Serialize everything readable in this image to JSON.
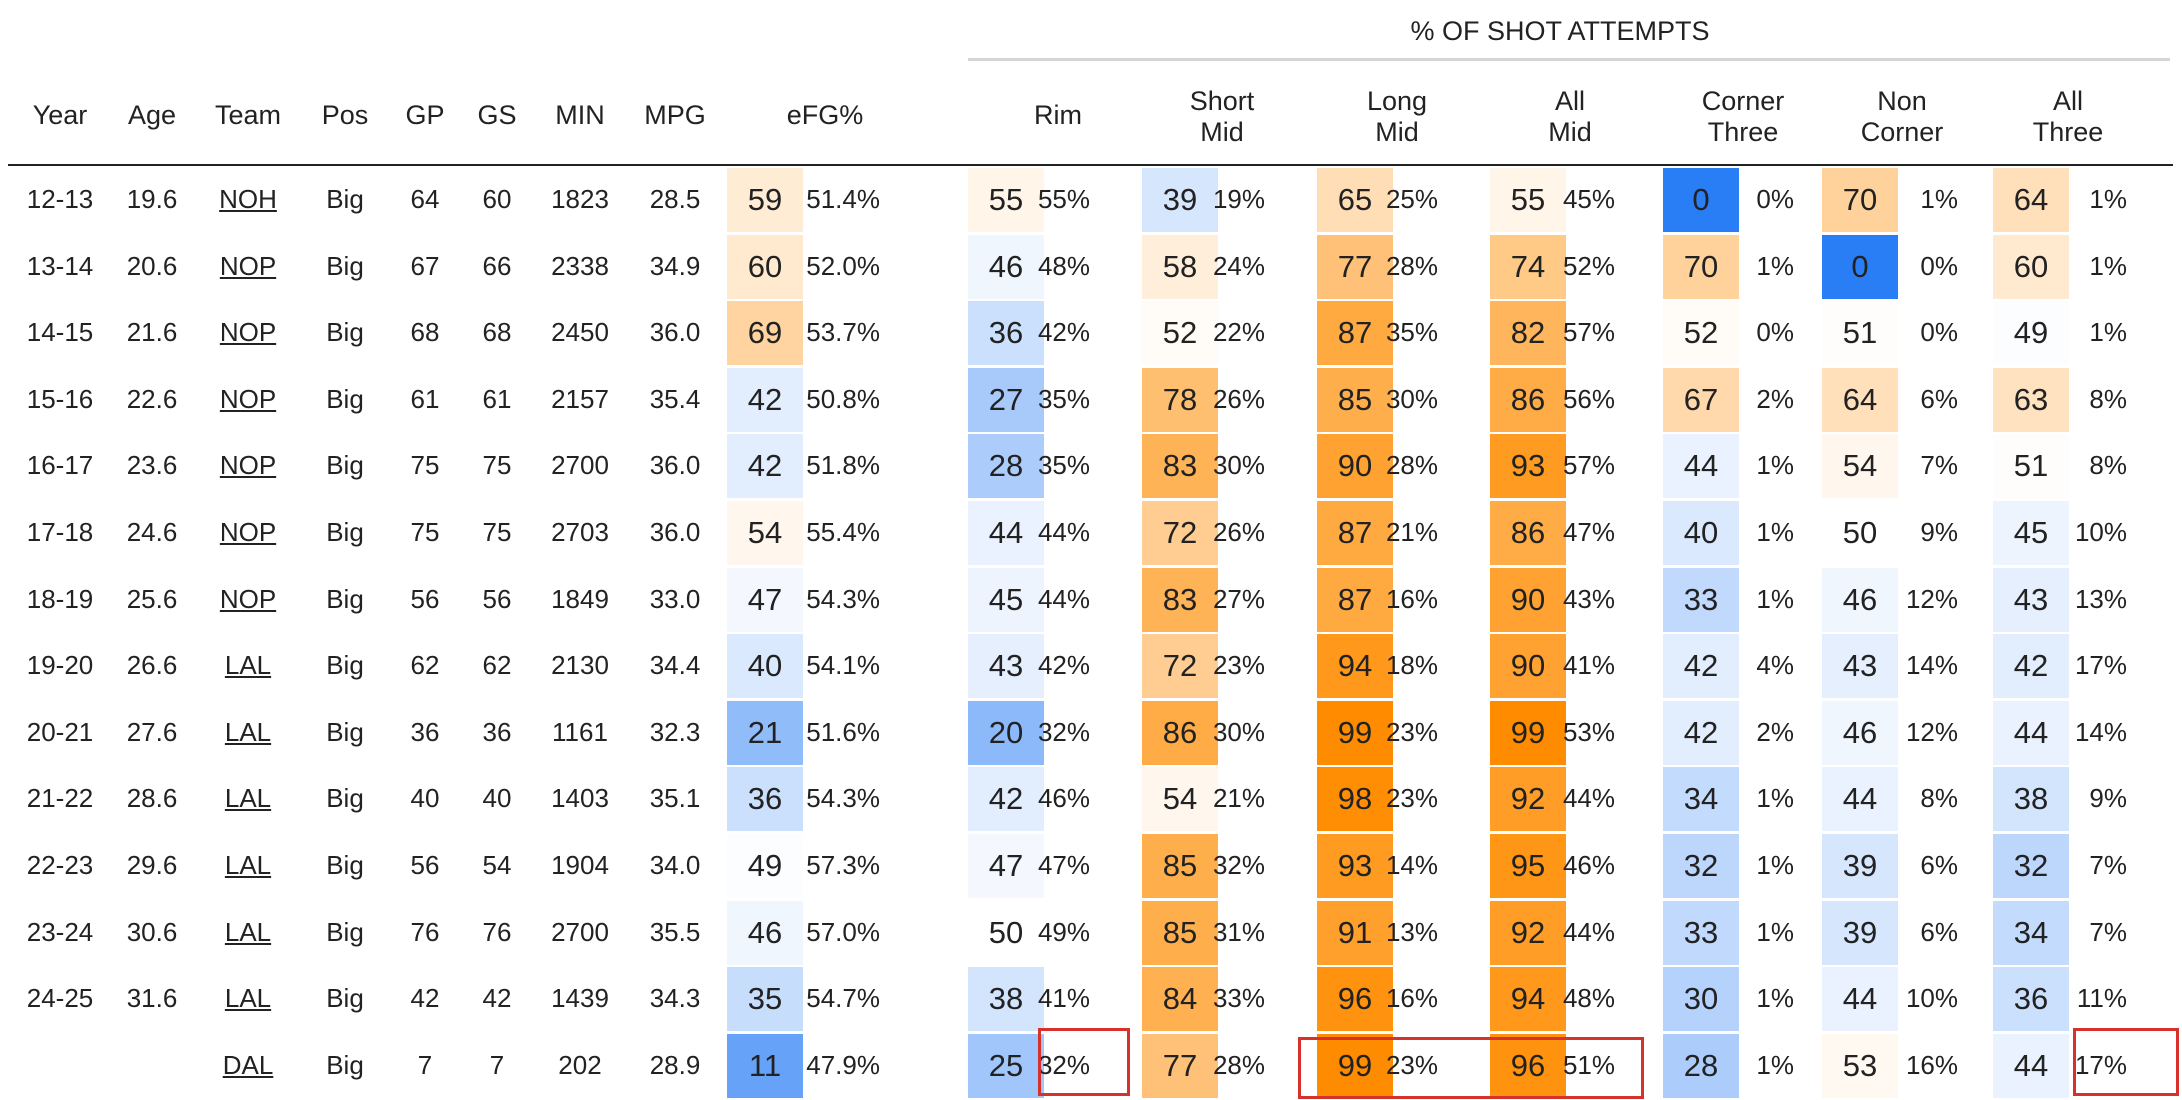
{
  "title": "% OF SHOT ATTEMPTS",
  "headers": {
    "year": "Year",
    "age": "Age",
    "team": "Team",
    "pos": "Pos",
    "gp": "GP",
    "gs": "GS",
    "min": "MIN",
    "mpg": "MPG",
    "efg": "eFG%",
    "rim": "Rim",
    "short_mid": [
      "Short",
      "Mid"
    ],
    "long_mid": [
      "Long",
      "Mid"
    ],
    "all_mid": [
      "All",
      "Mid"
    ],
    "corner_three": [
      "Corner",
      "Three"
    ],
    "non_corner": [
      "Non",
      "Corner"
    ],
    "all_three": [
      "All",
      "Three"
    ]
  },
  "rows": [
    {
      "year": "12-13",
      "age": "19.6",
      "team": "NOH",
      "pos": "Big",
      "gp": "64",
      "gs": "60",
      "min": "1823",
      "mpg": "28.5",
      "efg_pctile": 59,
      "efg": "51.4%",
      "rim_pctile": 55,
      "rim": "55%",
      "smid_pctile": 39,
      "smid": "19%",
      "lmid_pctile": 65,
      "lmid": "25%",
      "amid_pctile": 55,
      "amid": "45%",
      "c3_pctile": 0,
      "c3": "0%",
      "nc3_pctile": 70,
      "nc3": "1%",
      "a3_pctile": 64,
      "a3": "1%"
    },
    {
      "year": "13-14",
      "age": "20.6",
      "team": "NOP",
      "pos": "Big",
      "gp": "67",
      "gs": "66",
      "min": "2338",
      "mpg": "34.9",
      "efg_pctile": 60,
      "efg": "52.0%",
      "rim_pctile": 46,
      "rim": "48%",
      "smid_pctile": 58,
      "smid": "24%",
      "lmid_pctile": 77,
      "lmid": "28%",
      "amid_pctile": 74,
      "amid": "52%",
      "c3_pctile": 70,
      "c3": "1%",
      "nc3_pctile": 0,
      "nc3": "0%",
      "a3_pctile": 60,
      "a3": "1%"
    },
    {
      "year": "14-15",
      "age": "21.6",
      "team": "NOP",
      "pos": "Big",
      "gp": "68",
      "gs": "68",
      "min": "2450",
      "mpg": "36.0",
      "efg_pctile": 69,
      "efg": "53.7%",
      "rim_pctile": 36,
      "rim": "42%",
      "smid_pctile": 52,
      "smid": "22%",
      "lmid_pctile": 87,
      "lmid": "35%",
      "amid_pctile": 82,
      "amid": "57%",
      "c3_pctile": 52,
      "c3": "0%",
      "nc3_pctile": 51,
      "nc3": "0%",
      "a3_pctile": 49,
      "a3": "1%"
    },
    {
      "year": "15-16",
      "age": "22.6",
      "team": "NOP",
      "pos": "Big",
      "gp": "61",
      "gs": "61",
      "min": "2157",
      "mpg": "35.4",
      "efg_pctile": 42,
      "efg": "50.8%",
      "rim_pctile": 27,
      "rim": "35%",
      "smid_pctile": 78,
      "smid": "26%",
      "lmid_pctile": 85,
      "lmid": "30%",
      "amid_pctile": 86,
      "amid": "56%",
      "c3_pctile": 67,
      "c3": "2%",
      "nc3_pctile": 64,
      "nc3": "6%",
      "a3_pctile": 63,
      "a3": "8%"
    },
    {
      "year": "16-17",
      "age": "23.6",
      "team": "NOP",
      "pos": "Big",
      "gp": "75",
      "gs": "75",
      "min": "2700",
      "mpg": "36.0",
      "efg_pctile": 42,
      "efg": "51.8%",
      "rim_pctile": 28,
      "rim": "35%",
      "smid_pctile": 83,
      "smid": "30%",
      "lmid_pctile": 90,
      "lmid": "28%",
      "amid_pctile": 93,
      "amid": "57%",
      "c3_pctile": 44,
      "c3": "1%",
      "nc3_pctile": 54,
      "nc3": "7%",
      "a3_pctile": 51,
      "a3": "8%"
    },
    {
      "year": "17-18",
      "age": "24.6",
      "team": "NOP",
      "pos": "Big",
      "gp": "75",
      "gs": "75",
      "min": "2703",
      "mpg": "36.0",
      "efg_pctile": 54,
      "efg": "55.4%",
      "rim_pctile": 44,
      "rim": "44%",
      "smid_pctile": 72,
      "smid": "26%",
      "lmid_pctile": 87,
      "lmid": "21%",
      "amid_pctile": 86,
      "amid": "47%",
      "c3_pctile": 40,
      "c3": "1%",
      "nc3_pctile": 50,
      "nc3": "9%",
      "a3_pctile": 45,
      "a3": "10%"
    },
    {
      "year": "18-19",
      "age": "25.6",
      "team": "NOP",
      "pos": "Big",
      "gp": "56",
      "gs": "56",
      "min": "1849",
      "mpg": "33.0",
      "efg_pctile": 47,
      "efg": "54.3%",
      "rim_pctile": 45,
      "rim": "44%",
      "smid_pctile": 83,
      "smid": "27%",
      "lmid_pctile": 87,
      "lmid": "16%",
      "amid_pctile": 90,
      "amid": "43%",
      "c3_pctile": 33,
      "c3": "1%",
      "nc3_pctile": 46,
      "nc3": "12%",
      "a3_pctile": 43,
      "a3": "13%"
    },
    {
      "year": "19-20",
      "age": "26.6",
      "team": "LAL",
      "pos": "Big",
      "gp": "62",
      "gs": "62",
      "min": "2130",
      "mpg": "34.4",
      "efg_pctile": 40,
      "efg": "54.1%",
      "rim_pctile": 43,
      "rim": "42%",
      "smid_pctile": 72,
      "smid": "23%",
      "lmid_pctile": 94,
      "lmid": "18%",
      "amid_pctile": 90,
      "amid": "41%",
      "c3_pctile": 42,
      "c3": "4%",
      "nc3_pctile": 43,
      "nc3": "14%",
      "a3_pctile": 42,
      "a3": "17%"
    },
    {
      "year": "20-21",
      "age": "27.6",
      "team": "LAL",
      "pos": "Big",
      "gp": "36",
      "gs": "36",
      "min": "1161",
      "mpg": "32.3",
      "efg_pctile": 21,
      "efg": "51.6%",
      "rim_pctile": 20,
      "rim": "32%",
      "smid_pctile": 86,
      "smid": "30%",
      "lmid_pctile": 99,
      "lmid": "23%",
      "amid_pctile": 99,
      "amid": "53%",
      "c3_pctile": 42,
      "c3": "2%",
      "nc3_pctile": 46,
      "nc3": "12%",
      "a3_pctile": 44,
      "a3": "14%"
    },
    {
      "year": "21-22",
      "age": "28.6",
      "team": "LAL",
      "pos": "Big",
      "gp": "40",
      "gs": "40",
      "min": "1403",
      "mpg": "35.1",
      "efg_pctile": 36,
      "efg": "54.3%",
      "rim_pctile": 42,
      "rim": "46%",
      "smid_pctile": 54,
      "smid": "21%",
      "lmid_pctile": 98,
      "lmid": "23%",
      "amid_pctile": 92,
      "amid": "44%",
      "c3_pctile": 34,
      "c3": "1%",
      "nc3_pctile": 44,
      "nc3": "8%",
      "a3_pctile": 38,
      "a3": "9%"
    },
    {
      "year": "22-23",
      "age": "29.6",
      "team": "LAL",
      "pos": "Big",
      "gp": "56",
      "gs": "54",
      "min": "1904",
      "mpg": "34.0",
      "efg_pctile": 49,
      "efg": "57.3%",
      "rim_pctile": 47,
      "rim": "47%",
      "smid_pctile": 85,
      "smid": "32%",
      "lmid_pctile": 93,
      "lmid": "14%",
      "amid_pctile": 95,
      "amid": "46%",
      "c3_pctile": 32,
      "c3": "1%",
      "nc3_pctile": 39,
      "nc3": "6%",
      "a3_pctile": 32,
      "a3": "7%"
    },
    {
      "year": "23-24",
      "age": "30.6",
      "team": "LAL",
      "pos": "Big",
      "gp": "76",
      "gs": "76",
      "min": "2700",
      "mpg": "35.5",
      "efg_pctile": 46,
      "efg": "57.0%",
      "rim_pctile": 50,
      "rim": "49%",
      "smid_pctile": 85,
      "smid": "31%",
      "lmid_pctile": 91,
      "lmid": "13%",
      "amid_pctile": 92,
      "amid": "44%",
      "c3_pctile": 33,
      "c3": "1%",
      "nc3_pctile": 39,
      "nc3": "6%",
      "a3_pctile": 34,
      "a3": "7%"
    },
    {
      "year": "24-25",
      "age": "31.6",
      "team": "LAL",
      "pos": "Big",
      "gp": "42",
      "gs": "42",
      "min": "1439",
      "mpg": "34.3",
      "efg_pctile": 35,
      "efg": "54.7%",
      "rim_pctile": 38,
      "rim": "41%",
      "smid_pctile": 84,
      "smid": "33%",
      "lmid_pctile": 96,
      "lmid": "16%",
      "amid_pctile": 94,
      "amid": "48%",
      "c3_pctile": 30,
      "c3": "1%",
      "nc3_pctile": 44,
      "nc3": "10%",
      "a3_pctile": 36,
      "a3": "11%"
    },
    {
      "year": "",
      "age": "",
      "team": "DAL",
      "pos": "Big",
      "gp": "7",
      "gs": "7",
      "min": "202",
      "mpg": "28.9",
      "efg_pctile": 11,
      "efg": "47.9%",
      "rim_pctile": 25,
      "rim": "32%",
      "smid_pctile": 77,
      "smid": "28%",
      "lmid_pctile": 99,
      "lmid": "23%",
      "amid_pctile": 96,
      "amid": "51%",
      "c3_pctile": 28,
      "c3": "1%",
      "nc3_pctile": 53,
      "nc3": "16%",
      "a3_pctile": 44,
      "a3": "17%"
    }
  ],
  "colors": {
    "low": "#2a7ef5",
    "mid": "#ffffff",
    "high": "#ff8c00",
    "highlight": "#d6322b",
    "text": "#222222"
  }
}
